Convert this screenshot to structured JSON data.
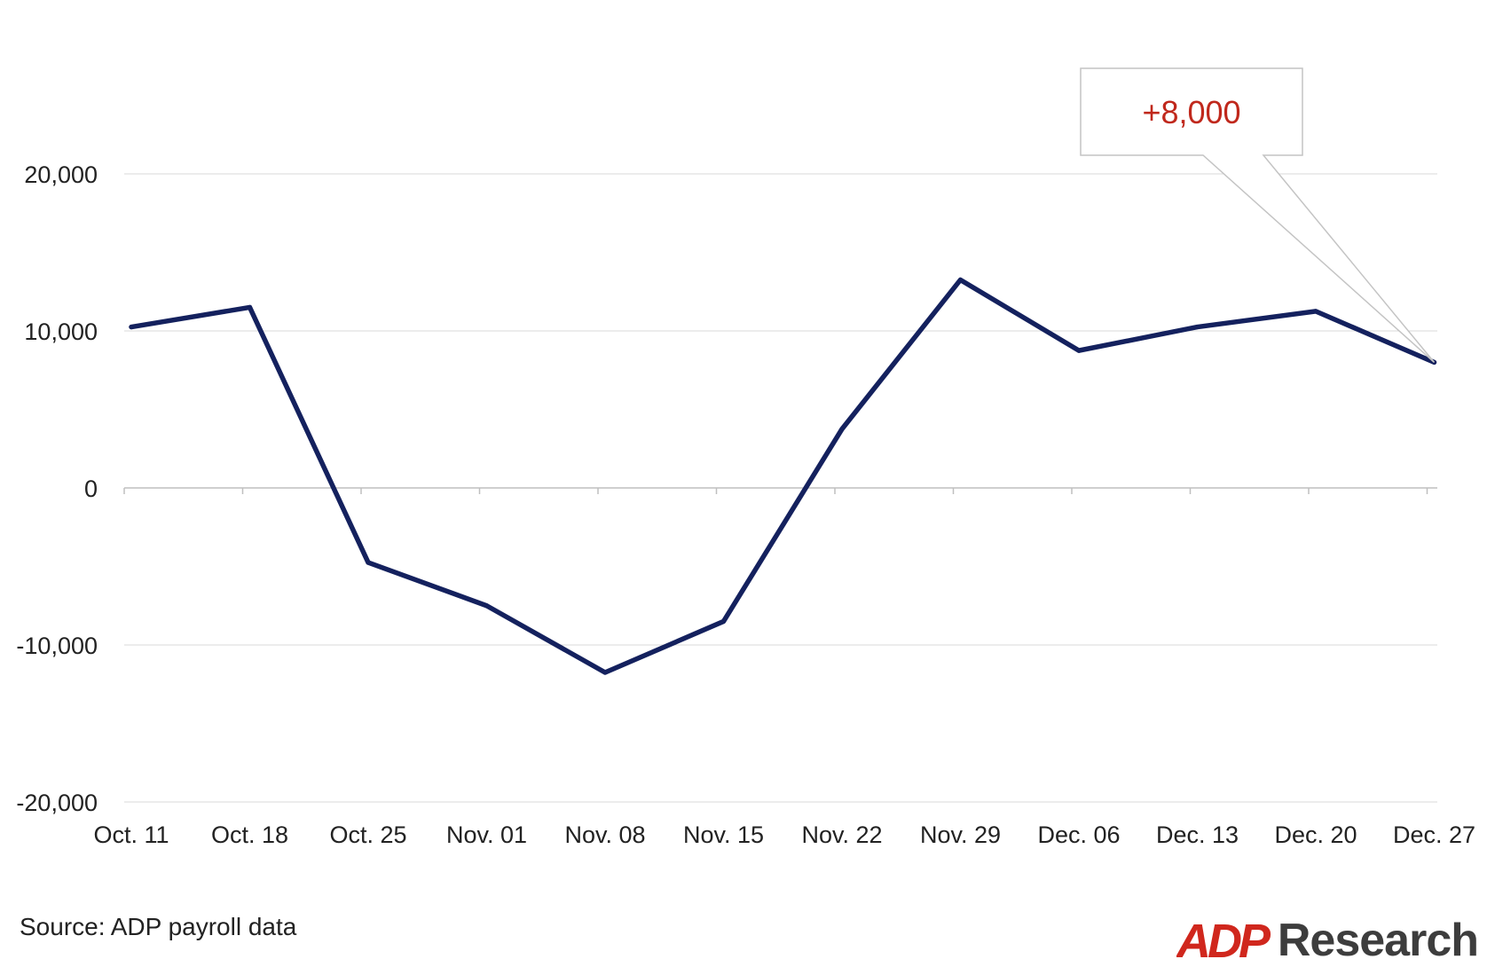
{
  "chart_data": {
    "type": "line",
    "categories": [
      "Oct. 11",
      "Oct. 18",
      "Oct. 25",
      "Nov. 01",
      "Nov. 08",
      "Nov. 15",
      "Nov. 22",
      "Nov. 29",
      "Dec. 06",
      "Dec. 13",
      "Dec. 20",
      "Dec. 27"
    ],
    "series": [
      {
        "values": [
          10250,
          11500,
          -4750,
          -7500,
          -11750,
          -8500,
          3750,
          13250,
          8750,
          10250,
          11250,
          8000
        ],
        "color": "#14215e"
      }
    ],
    "y_ticks": [
      20000,
      10000,
      0,
      -10000,
      -20000
    ],
    "y_tick_labels": [
      "20,000",
      "10,000",
      "0",
      "-10,000",
      "-20,000"
    ],
    "ylim": [
      -20000,
      20000
    ],
    "grid": true,
    "annotation": {
      "text": "+8,000",
      "target_index": 11,
      "color": "#c0281c"
    }
  },
  "source": "Source: ADP payroll data",
  "logo": {
    "brand": "ADP",
    "text": "Research",
    "brand_color": "#d0271d"
  }
}
